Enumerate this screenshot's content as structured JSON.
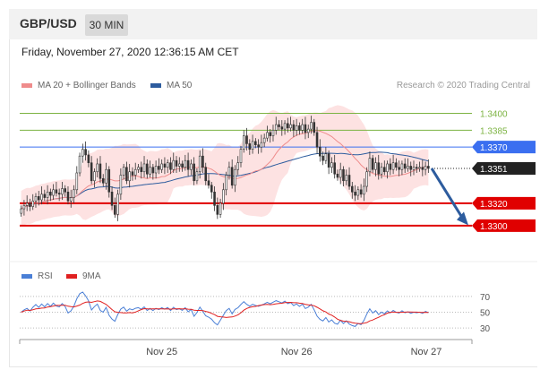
{
  "header": {
    "pair": "GBP/USD",
    "timeframe": "30 MIN"
  },
  "timestamp": "Friday, November 27, 2020 12:36:15 AM CET",
  "legend": {
    "bollinger": {
      "label": "MA 20 + Bollinger Bands",
      "color": "#ef8c8c"
    },
    "ma50": {
      "label": "MA 50",
      "color": "#2d5c9e"
    },
    "credit": "Research © 2020 Trading Central"
  },
  "rsi_legend": {
    "rsi": {
      "label": "RSI",
      "color": "#4a7fd6"
    },
    "ma9": {
      "label": "9MA",
      "color": "#e02020"
    }
  },
  "colors": {
    "resistance": "#7cb342",
    "support": "#e00000",
    "pivot": "#3b6ff0",
    "current": "#222222",
    "arrow": "#2d5c9e"
  },
  "chart_data": {
    "type": "candlestick",
    "ylim": [
      1.3268,
      1.3418
    ],
    "xlim": [
      0,
      139
    ],
    "x_ticks": [
      {
        "index": 48,
        "label": "Nov 25"
      },
      {
        "index": 94,
        "label": "Nov 26"
      },
      {
        "index": 141,
        "label": "Nov 27"
      }
    ],
    "levels": [
      {
        "name": "resistance-2",
        "value": 1.34,
        "label": "1.3400",
        "type": "resistance"
      },
      {
        "name": "resistance-1",
        "value": 1.3385,
        "label": "1.3385",
        "type": "resistance"
      },
      {
        "name": "pivot",
        "value": 1.337,
        "label": "1.3370",
        "type": "pivot"
      },
      {
        "name": "current-price",
        "value": 1.3351,
        "label": "1.3351",
        "type": "current"
      },
      {
        "name": "support-1",
        "value": 1.332,
        "label": "1.3320",
        "type": "support"
      },
      {
        "name": "support-2",
        "value": 1.33,
        "label": "1.3300",
        "type": "support"
      }
    ],
    "close": [
      1.3315,
      1.3318,
      1.332,
      1.3317,
      1.3322,
      1.3326,
      1.3323,
      1.3328,
      1.3325,
      1.333,
      1.3327,
      1.3332,
      1.3329,
      1.3328,
      1.3333,
      1.333,
      1.3322,
      1.3325,
      1.3332,
      1.3347,
      1.3362,
      1.3368,
      1.3363,
      1.3356,
      1.334,
      1.3348,
      1.3355,
      1.3342,
      1.3338,
      1.335,
      1.333,
      1.3318,
      1.331,
      1.3328,
      1.3345,
      1.3352,
      1.334,
      1.3348,
      1.3345,
      1.335,
      1.3352,
      1.3348,
      1.3355,
      1.3346,
      1.3352,
      1.3347,
      1.3353,
      1.335,
      1.3355,
      1.3352,
      1.3356,
      1.335,
      1.3358,
      1.3353,
      1.3355,
      1.3352,
      1.3358,
      1.335,
      1.3355,
      1.334,
      1.3348,
      1.3362,
      1.3352,
      1.334,
      1.3336,
      1.333,
      1.3318,
      1.331,
      1.332,
      1.3332,
      1.3345,
      1.3352,
      1.3336,
      1.335,
      1.3356,
      1.3368,
      1.338,
      1.3373,
      1.3368,
      1.3375,
      1.3372,
      1.337,
      1.3374,
      1.3378,
      1.3383,
      1.338,
      1.3385,
      1.339,
      1.3388,
      1.3386,
      1.3391,
      1.3387,
      1.339,
      1.3385,
      1.3389,
      1.3385,
      1.339,
      1.3383,
      1.3386,
      1.3392,
      1.3383,
      1.337,
      1.3362,
      1.3358,
      1.3364,
      1.3352,
      1.3356,
      1.3346,
      1.3343,
      1.335,
      1.334,
      1.3345,
      1.3335,
      1.333,
      1.3327,
      1.3332,
      1.3328,
      1.3335,
      1.3348,
      1.336,
      1.335,
      1.3356,
      1.3346,
      1.3352,
      1.3348,
      1.3355,
      1.335,
      1.3356,
      1.3352,
      1.335,
      1.3355,
      1.3351,
      1.3353,
      1.335,
      1.3352,
      1.3351,
      1.3352,
      1.335,
      1.3353,
      1.3351
    ],
    "rsi": {
      "ylim": [
        20,
        80
      ],
      "levels": [
        {
          "value": 70,
          "label": "70"
        },
        {
          "value": 50,
          "label": "50"
        },
        {
          "value": 30,
          "label": "30"
        }
      ]
    }
  }
}
